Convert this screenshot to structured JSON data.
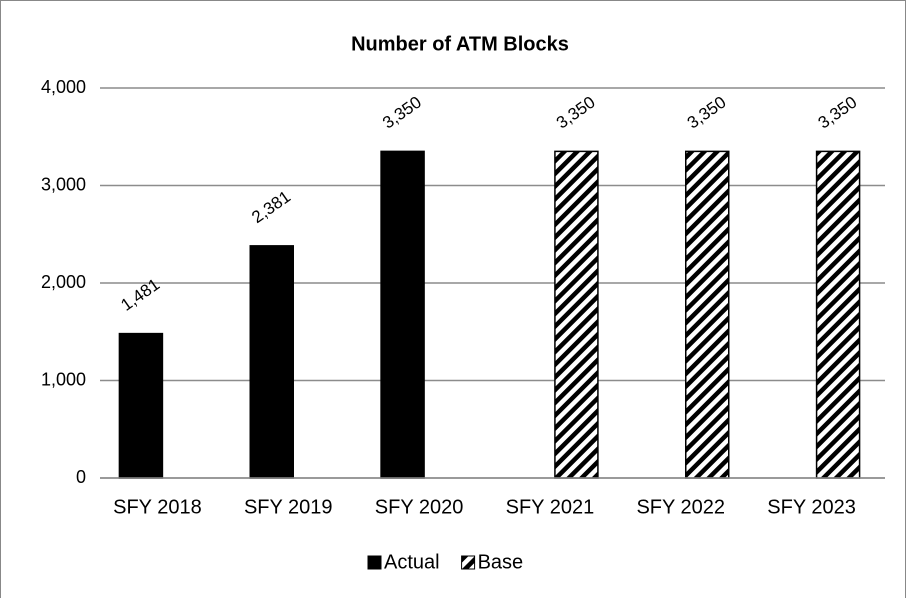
{
  "chart_data": {
    "type": "bar",
    "title": "Number of ATM Blocks",
    "categories": [
      "SFY 2018",
      "SFY 2019",
      "SFY 2020",
      "SFY 2021",
      "SFY 2022",
      "SFY 2023"
    ],
    "series": [
      {
        "name": "Actual",
        "color": "#000000",
        "fill": "solid",
        "values": [
          1481,
          2381,
          3350,
          null,
          null,
          null
        ],
        "value_labels": [
          "1,481",
          "2,381",
          "3,350",
          null,
          null,
          null
        ]
      },
      {
        "name": "Base",
        "color": "#000000",
        "fill": "hatched",
        "values": [
          null,
          null,
          null,
          3350,
          3350,
          3350
        ],
        "value_labels": [
          null,
          null,
          null,
          "3,350",
          "3,350",
          "3,350"
        ]
      }
    ],
    "ylim": [
      0,
      4000
    ],
    "yticks": [
      0,
      {
        "value": 1000,
        "label": "1,000"
      },
      {
        "value": 2000,
        "label": "2,000"
      },
      {
        "value": 3000,
        "label": "3,000"
      },
      {
        "value": 4000,
        "label": "4,000"
      }
    ],
    "grid": true,
    "legend": "bottom"
  }
}
